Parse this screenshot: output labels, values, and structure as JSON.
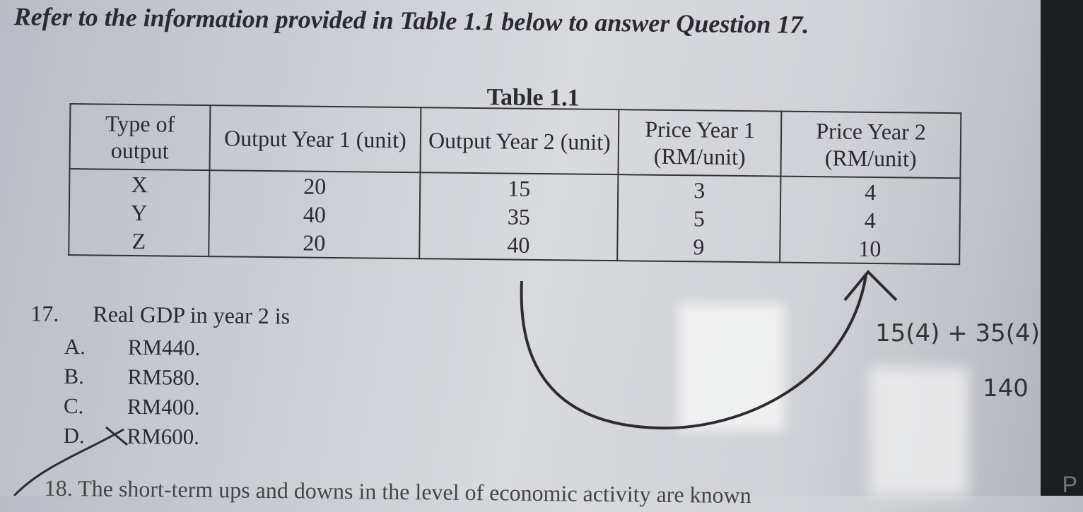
{
  "intro": "Refer to the information provided in Table 1.1 below to answer Question 17.",
  "table": {
    "caption": "Table 1.1",
    "headers": [
      "Type of output",
      "Output Year 1 (unit)",
      "Output Year 2 (unit)",
      "Price Year 1 (RM/unit)",
      "Price Year 2 (RM/unit)"
    ],
    "rows": [
      [
        "X",
        "20",
        "15",
        "3",
        "4"
      ],
      [
        "Y",
        "40",
        "35",
        "5",
        "4"
      ],
      [
        "Z",
        "20",
        "40",
        "9",
        "10"
      ]
    ]
  },
  "question": {
    "number": "17.",
    "text": "Real GDP in year 2 is",
    "options": [
      {
        "letter": "A.",
        "text": "RM440."
      },
      {
        "letter": "B.",
        "text": "RM580."
      },
      {
        "letter": "C.",
        "text": "RM400."
      },
      {
        "letter": "D.",
        "text": "RM600."
      }
    ]
  },
  "next_question": "18.  The short-term ups and downs in the level of economic activity are known",
  "handwriting": {
    "line1": "15(4) + 35(4)",
    "line2": "140"
  },
  "corner_text": "P"
}
